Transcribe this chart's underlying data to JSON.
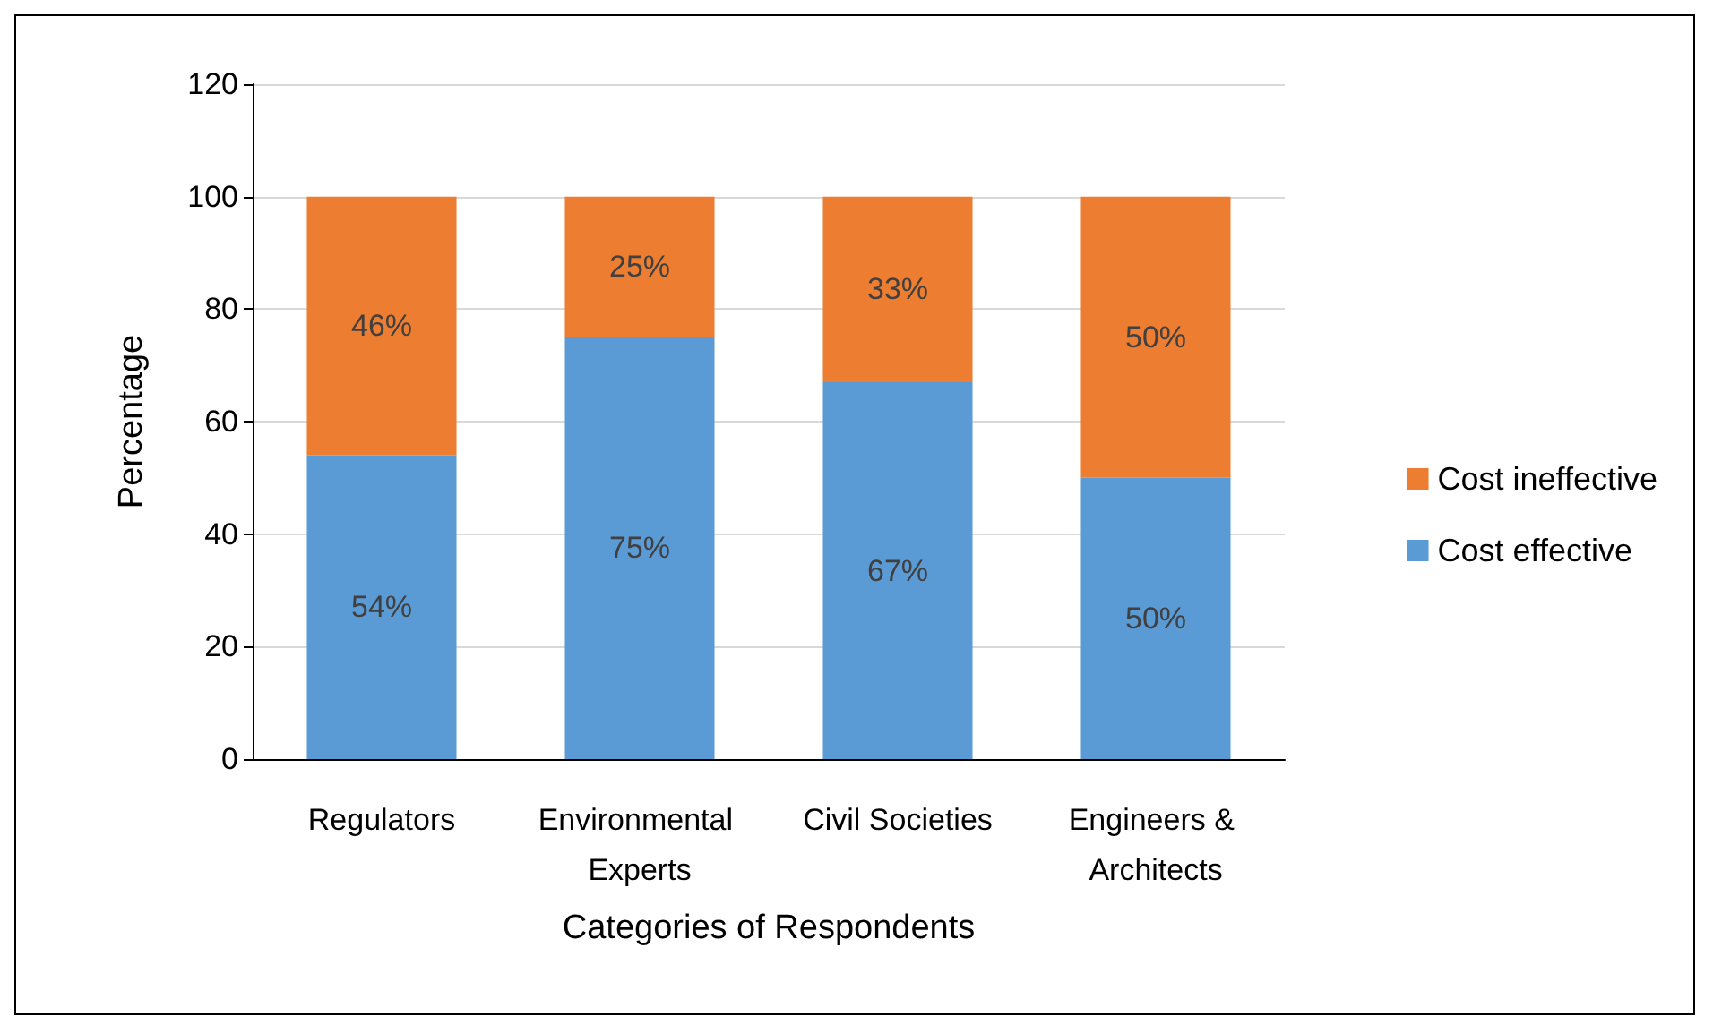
{
  "chart_data": {
    "type": "bar",
    "stacked": true,
    "xlabel": "Categories of Respondents",
    "ylabel": "Percentage",
    "categories": [
      "Regulators",
      "Environmental Experts",
      "Civil Societies",
      "Engineers & Architects"
    ],
    "series": [
      {
        "name": "Cost effective",
        "color": "#5b9bd5",
        "values": [
          54,
          75,
          67,
          50
        ],
        "value_labels": [
          "54%",
          "75%",
          "67%",
          "50%"
        ]
      },
      {
        "name": "Cost ineffective",
        "color": "#ed7d31",
        "values": [
          46,
          25,
          33,
          50
        ],
        "value_labels": [
          "46%",
          "25%",
          "33%",
          "50%"
        ]
      }
    ],
    "ylim": [
      0,
      120
    ],
    "yticks": [
      0,
      20,
      40,
      60,
      80,
      100,
      120
    ],
    "grid": "y",
    "legend": "right"
  }
}
